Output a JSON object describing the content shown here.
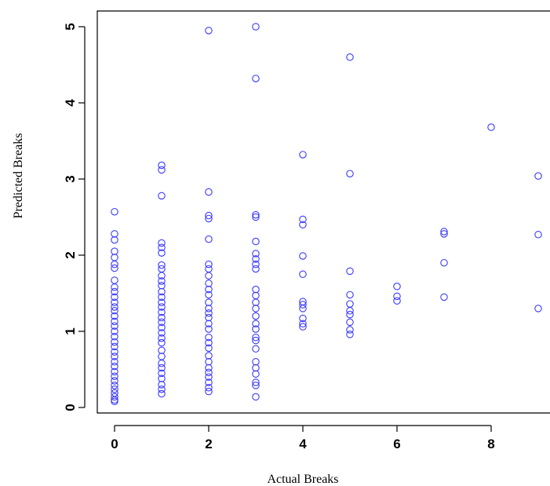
{
  "chart_data": {
    "type": "scatter",
    "xlabel": "Actual Breaks",
    "ylabel": "Predicted Breaks",
    "xlim": [
      -0.3,
      9.2
    ],
    "ylim": [
      -0.05,
      5.2
    ],
    "xticks": [
      0,
      2,
      4,
      6,
      8
    ],
    "yticks": [
      0,
      1,
      2,
      3,
      4,
      5
    ],
    "grid": false,
    "marker": "open-circle",
    "marker_color": "#3a3aff",
    "series": [
      {
        "points": [
          [
            0,
            2.57
          ],
          [
            0,
            2.28
          ],
          [
            0,
            2.2
          ],
          [
            0,
            2.05
          ],
          [
            0,
            1.97
          ],
          [
            0,
            1.88
          ],
          [
            0,
            1.83
          ],
          [
            0,
            1.67
          ],
          [
            0,
            1.58
          ],
          [
            0,
            1.52
          ],
          [
            0,
            1.45
          ],
          [
            0,
            1.38
          ],
          [
            0,
            1.32
          ],
          [
            0,
            1.27
          ],
          [
            0,
            1.2
          ],
          [
            0,
            1.13
          ],
          [
            0,
            1.07
          ],
          [
            0,
            1.0
          ],
          [
            0,
            0.93
          ],
          [
            0,
            0.86
          ],
          [
            0,
            0.8
          ],
          [
            0,
            0.73
          ],
          [
            0,
            0.67
          ],
          [
            0,
            0.6
          ],
          [
            0,
            0.54
          ],
          [
            0,
            0.47
          ],
          [
            0,
            0.41
          ],
          [
            0,
            0.35
          ],
          [
            0,
            0.29
          ],
          [
            0,
            0.24
          ],
          [
            0,
            0.19
          ],
          [
            0,
            0.14
          ],
          [
            0,
            0.1
          ],
          [
            0,
            0.08
          ],
          [
            1,
            3.18
          ],
          [
            1,
            3.12
          ],
          [
            1,
            2.78
          ],
          [
            1,
            2.16
          ],
          [
            1,
            2.1
          ],
          [
            1,
            2.03
          ],
          [
            1,
            1.87
          ],
          [
            1,
            1.82
          ],
          [
            1,
            1.73
          ],
          [
            1,
            1.66
          ],
          [
            1,
            1.6
          ],
          [
            1,
            1.52
          ],
          [
            1,
            1.45
          ],
          [
            1,
            1.38
          ],
          [
            1,
            1.32
          ],
          [
            1,
            1.25
          ],
          [
            1,
            1.18
          ],
          [
            1,
            1.12
          ],
          [
            1,
            1.05
          ],
          [
            1,
            0.98
          ],
          [
            1,
            0.91
          ],
          [
            1,
            0.85
          ],
          [
            1,
            0.75
          ],
          [
            1,
            0.67
          ],
          [
            1,
            0.58
          ],
          [
            1,
            0.52
          ],
          [
            1,
            0.45
          ],
          [
            1,
            0.38
          ],
          [
            1,
            0.3
          ],
          [
            1,
            0.24
          ],
          [
            1,
            0.18
          ],
          [
            2,
            4.95
          ],
          [
            2,
            2.83
          ],
          [
            2,
            2.52
          ],
          [
            2,
            2.48
          ],
          [
            2,
            2.21
          ],
          [
            2,
            1.88
          ],
          [
            2,
            1.82
          ],
          [
            2,
            1.73
          ],
          [
            2,
            1.63
          ],
          [
            2,
            1.55
          ],
          [
            2,
            1.48
          ],
          [
            2,
            1.38
          ],
          [
            2,
            1.3
          ],
          [
            2,
            1.24
          ],
          [
            2,
            1.18
          ],
          [
            2,
            1.1
          ],
          [
            2,
            1.03
          ],
          [
            2,
            0.92
          ],
          [
            2,
            0.85
          ],
          [
            2,
            0.78
          ],
          [
            2,
            0.68
          ],
          [
            2,
            0.6
          ],
          [
            2,
            0.52
          ],
          [
            2,
            0.46
          ],
          [
            2,
            0.4
          ],
          [
            2,
            0.33
          ],
          [
            2,
            0.26
          ],
          [
            2,
            0.21
          ],
          [
            3,
            5.0
          ],
          [
            3,
            4.32
          ],
          [
            3,
            2.53
          ],
          [
            3,
            2.5
          ],
          [
            3,
            2.18
          ],
          [
            3,
            2.02
          ],
          [
            3,
            1.95
          ],
          [
            3,
            1.88
          ],
          [
            3,
            1.82
          ],
          [
            3,
            1.55
          ],
          [
            3,
            1.47
          ],
          [
            3,
            1.38
          ],
          [
            3,
            1.3
          ],
          [
            3,
            1.2
          ],
          [
            3,
            1.1
          ],
          [
            3,
            1.03
          ],
          [
            3,
            0.92
          ],
          [
            3,
            0.88
          ],
          [
            3,
            0.77
          ],
          [
            3,
            0.6
          ],
          [
            3,
            0.52
          ],
          [
            3,
            0.44
          ],
          [
            3,
            0.33
          ],
          [
            3,
            0.29
          ],
          [
            3,
            0.14
          ],
          [
            4,
            3.32
          ],
          [
            4,
            2.47
          ],
          [
            4,
            2.4
          ],
          [
            4,
            1.99
          ],
          [
            4,
            1.75
          ],
          [
            4,
            1.39
          ],
          [
            4,
            1.35
          ],
          [
            4,
            1.3
          ],
          [
            4,
            1.17
          ],
          [
            4,
            1.1
          ],
          [
            4,
            1.06
          ],
          [
            5,
            4.6
          ],
          [
            5,
            3.07
          ],
          [
            5,
            1.79
          ],
          [
            5,
            1.48
          ],
          [
            5,
            1.36
          ],
          [
            5,
            1.27
          ],
          [
            5,
            1.22
          ],
          [
            5,
            1.12
          ],
          [
            5,
            1.02
          ],
          [
            5,
            0.96
          ],
          [
            6,
            1.59
          ],
          [
            6,
            1.46
          ],
          [
            6,
            1.4
          ],
          [
            7,
            2.31
          ],
          [
            7,
            2.28
          ],
          [
            7,
            1.9
          ],
          [
            7,
            1.45
          ],
          [
            8,
            3.68
          ],
          [
            9,
            3.04
          ],
          [
            9,
            2.27
          ],
          [
            9,
            1.3
          ]
        ]
      }
    ]
  }
}
